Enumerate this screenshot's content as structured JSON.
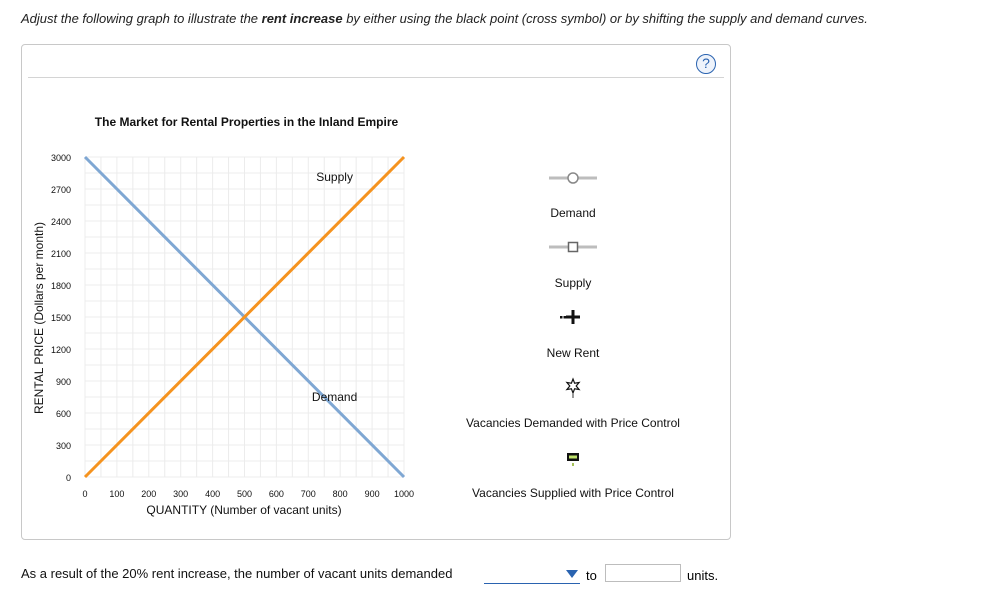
{
  "instructions": {
    "before": "Adjust the following graph to illustrate the ",
    "bold": "rent increase",
    "after": " by either using the black point (cross symbol) or by shifting the supply and demand curves."
  },
  "help_icon": "question-mark-icon",
  "chart_data": {
    "type": "line",
    "title": "The Market for Rental Properties in the Inland Empire",
    "xlabel": "QUANTITY (Number of vacant units)",
    "ylabel": "RENTAL PRICE (Dollars per month)",
    "xlim": [
      0,
      1000
    ],
    "ylim": [
      0,
      3000
    ],
    "x_ticks": [
      0,
      100,
      200,
      300,
      400,
      500,
      600,
      700,
      800,
      900,
      1000
    ],
    "y_ticks": [
      0,
      300,
      600,
      900,
      1200,
      1500,
      1800,
      2100,
      2400,
      2700,
      3000
    ],
    "grid": true,
    "series": [
      {
        "name": "Demand",
        "color": "#7fa7d3",
        "x": [
          0,
          1000
        ],
        "y": [
          3000,
          0
        ],
        "label_at": {
          "x": 795,
          "y": 750
        }
      },
      {
        "name": "Supply",
        "color": "#f5931f",
        "x": [
          0,
          1000
        ],
        "y": [
          0,
          3000
        ],
        "label_at": {
          "x": 795,
          "y": 2655
        }
      }
    ]
  },
  "tools": [
    {
      "name": "Demand",
      "icon": "demand-line-circle-icon"
    },
    {
      "name": "Supply",
      "icon": "supply-line-square-icon"
    },
    {
      "name": "New Rent",
      "icon": "black-cross-point-icon"
    },
    {
      "name": "Vacancies Demanded with Price Control",
      "icon": "star-point-icon"
    },
    {
      "name": "Vacancies Supplied with Price Control",
      "icon": "green-rect-point-icon"
    }
  ],
  "question": {
    "text": "As a result of the 20% rent increase, the number of vacant units demanded",
    "dropdown_value": "",
    "to": "to",
    "answer_value": "",
    "units": "units."
  },
  "colors": {
    "demand": "#7fa7d3",
    "supply": "#f5931f",
    "accent": "#2a63b0"
  }
}
